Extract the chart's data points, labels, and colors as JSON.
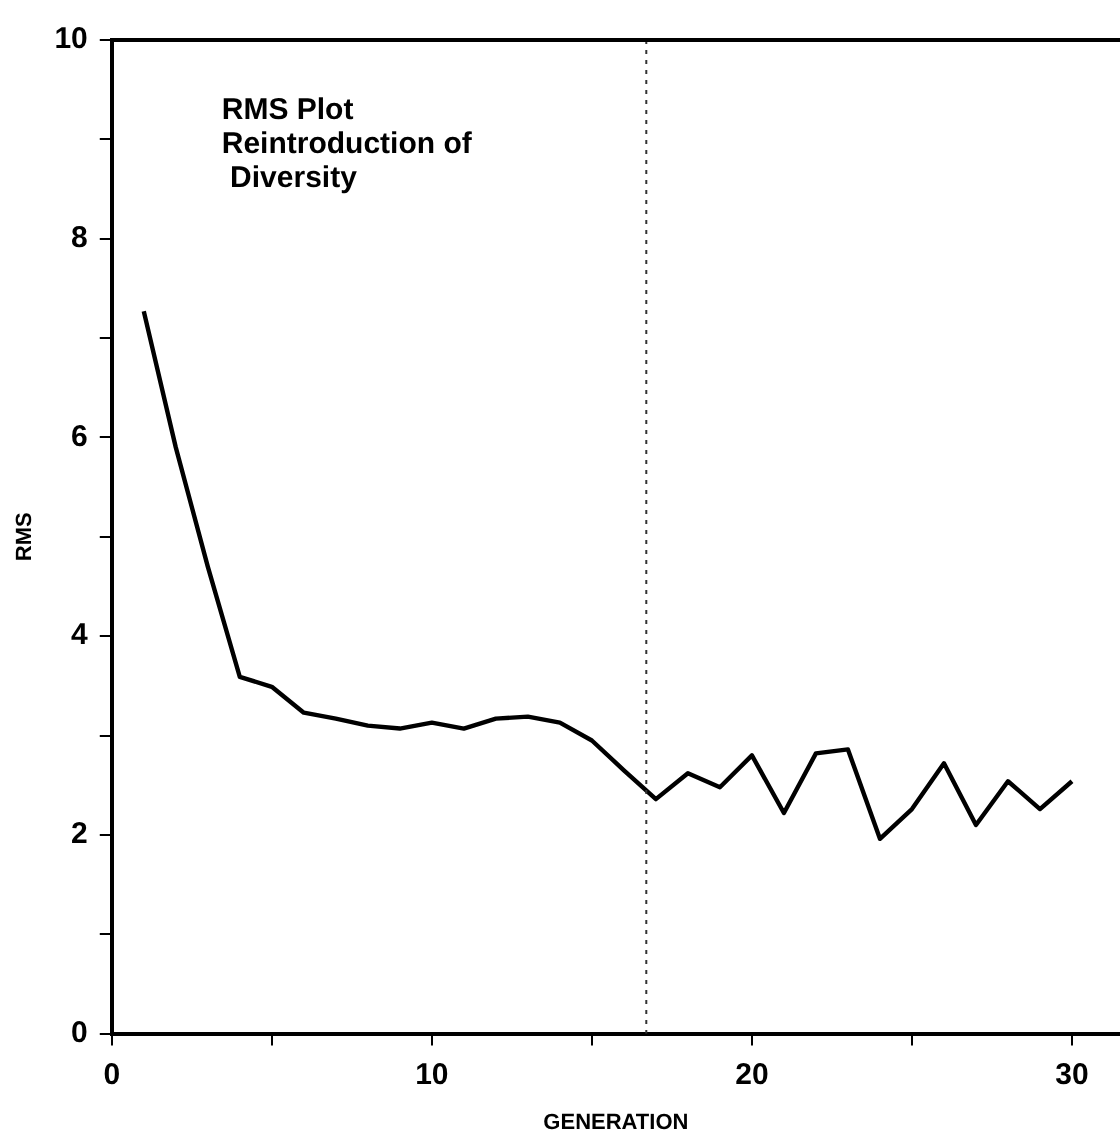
{
  "chart_data": {
    "type": "line",
    "xlabel": "GENERATION",
    "ylabel": "RMS",
    "annotations": [
      "RMS Plot",
      "Reintroduction of",
      " Diversity"
    ],
    "x": [
      1,
      2,
      3,
      4,
      5,
      6,
      7,
      8,
      9,
      10,
      11,
      12,
      13,
      14,
      15,
      16,
      17,
      18,
      19,
      20,
      21,
      22,
      23,
      24,
      25,
      26,
      27,
      28,
      29,
      30
    ],
    "series": [
      {
        "color": "#000000",
        "values": [
          7.27,
          5.9,
          4.7,
          3.59,
          3.49,
          3.23,
          3.17,
          3.1,
          3.07,
          3.13,
          3.07,
          3.17,
          3.19,
          3.13,
          2.95,
          2.65,
          2.36,
          2.62,
          2.48,
          2.8,
          2.22,
          2.82,
          2.86,
          1.96,
          2.26,
          2.72,
          2.1,
          2.54,
          2.26,
          2.54
        ]
      }
    ],
    "xlim": [
      0,
      31.5
    ],
    "xticks": [
      0,
      {
        "value": 5,
        "label": null
      },
      10,
      {
        "value": 15,
        "label": null
      },
      20,
      {
        "value": 25,
        "label": null
      },
      30
    ],
    "ylim": [
      0,
      10
    ],
    "yticks": [
      0,
      {
        "value": 1,
        "label": null
      },
      2,
      {
        "value": 3,
        "label": null
      },
      4,
      {
        "value": 5,
        "label": null
      },
      6,
      {
        "value": 7,
        "label": null
      },
      8,
      {
        "value": 9,
        "label": null
      },
      10
    ],
    "ref_lines": [
      {
        "axis": "x",
        "value": 16.7,
        "line_style": "dotted",
        "color": "#333333"
      }
    ],
    "grid": false,
    "legend": false,
    "marker": "none",
    "line_style": "solid"
  }
}
